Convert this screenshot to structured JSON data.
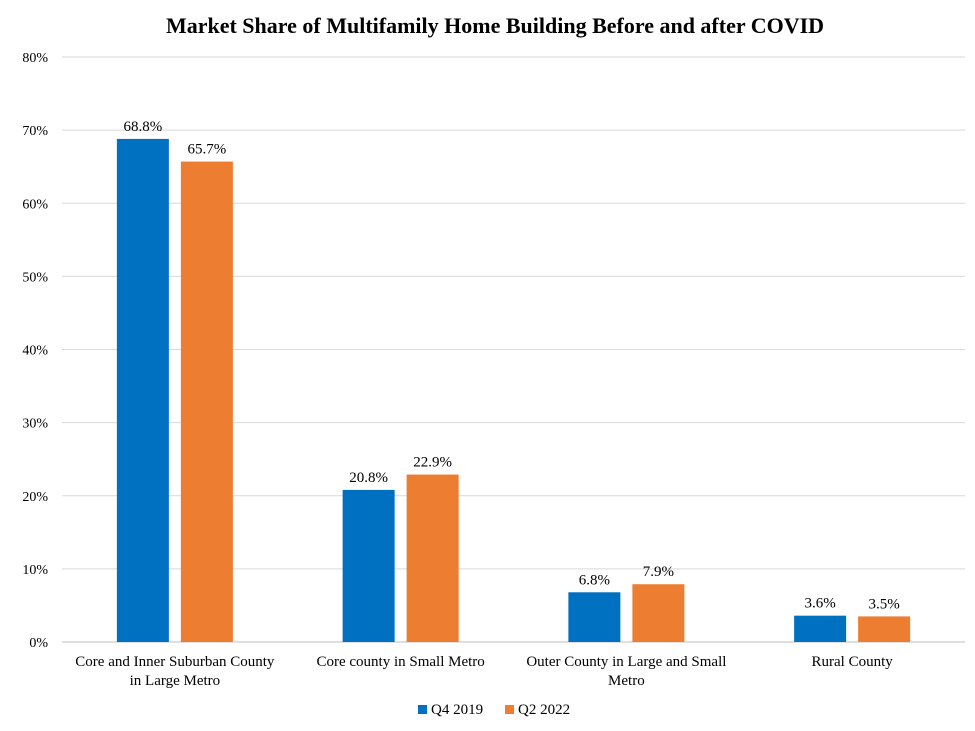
{
  "chart_data": {
    "type": "bar",
    "title": "Market Share of Multifamily Home Building Before and after COVID",
    "xlabel": "",
    "ylabel": "",
    "ylim": [
      0,
      80
    ],
    "yticks": [
      "0%",
      "10%",
      "20%",
      "30%",
      "40%",
      "50%",
      "60%",
      "70%",
      "80%"
    ],
    "categories": [
      [
        "Core and Inner Suburban County",
        "in Large Metro"
      ],
      [
        "Core county in Small Metro"
      ],
      [
        "Outer County in Large and Small",
        "Metro"
      ],
      [
        "Rural County"
      ]
    ],
    "series": [
      {
        "name": "Q4 2019",
        "color": "#0070c0",
        "values": [
          68.8,
          20.8,
          6.8,
          3.6
        ],
        "labels": [
          "68.8%",
          "20.8%",
          "6.8%",
          "3.6%"
        ]
      },
      {
        "name": "Q2 2022",
        "color": "#ed7d31",
        "values": [
          65.7,
          22.9,
          7.9,
          3.5
        ],
        "labels": [
          "65.7%",
          "22.9%",
          "7.9%",
          "3.5%"
        ]
      }
    ],
    "grid": true,
    "legend": "bottom-center"
  }
}
